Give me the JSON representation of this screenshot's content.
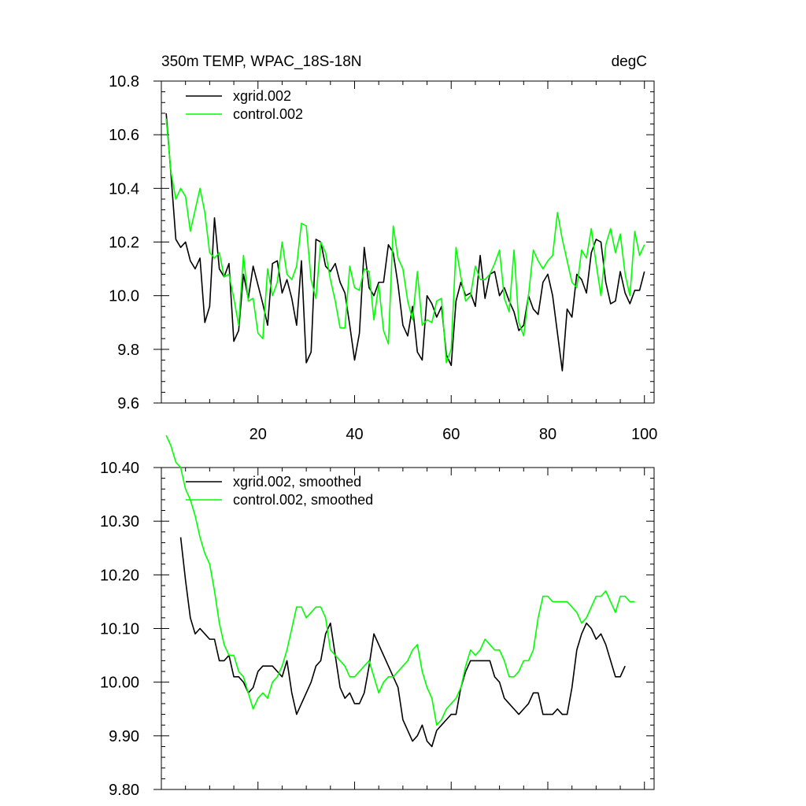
{
  "chart_data": [
    {
      "type": "line",
      "title": "350m TEMP, WPAC_18S-18N",
      "units": "degC",
      "xlim": [
        0,
        102
      ],
      "ylim": [
        9.6,
        10.8
      ],
      "xticks": [
        20,
        40,
        60,
        80,
        100
      ],
      "yticks": [
        9.6,
        9.8,
        10.0,
        10.2,
        10.4,
        10.6,
        10.8
      ],
      "ytick_labels": [
        "9.6",
        "9.8",
        "10.0",
        "10.2",
        "10.4",
        "10.6",
        "10.8"
      ],
      "x_start": 1,
      "x_step": 1,
      "legend_position": "top-left",
      "series": [
        {
          "name": "xgrid.002",
          "color": "#000000",
          "values": [
            10.68,
            10.45,
            10.21,
            10.18,
            10.2,
            10.13,
            10.1,
            10.14,
            9.9,
            9.96,
            10.29,
            10.1,
            10.07,
            10.12,
            9.83,
            9.87,
            10.08,
            9.99,
            10.11,
            10.04,
            9.97,
            9.89,
            10.12,
            10.13,
            10.01,
            10.06,
            9.99,
            9.89,
            10.13,
            9.75,
            9.79,
            10.21,
            10.2,
            10.11,
            10.09,
            10.12,
            10.05,
            10.01,
            9.89,
            9.76,
            9.86,
            10.18,
            10.03,
            10.0,
            10.05,
            10.05,
            10.19,
            10.16,
            10.04,
            9.89,
            9.85,
            9.96,
            9.79,
            9.76,
            10.0,
            9.97,
            9.92,
            9.96,
            9.78,
            9.74,
            9.98,
            10.05,
            10.0,
            10.01,
            9.96,
            10.15,
            9.99,
            10.08,
            10.09,
            10.0,
            10.03,
            9.98,
            9.94,
            9.87,
            9.89,
            10.0,
            9.95,
            9.93,
            10.05,
            10.08,
            10.0,
            9.86,
            9.72,
            9.95,
            9.92,
            10.08,
            10.06,
            10.01,
            10.16,
            10.21,
            10.2,
            10.05,
            9.97,
            9.98,
            10.09,
            10.01,
            9.97,
            10.02,
            10.02,
            10.09
          ]
        },
        {
          "name": "control.002",
          "color": "#00ff00",
          "values": [
            10.66,
            10.46,
            10.36,
            10.4,
            10.37,
            10.24,
            10.32,
            10.4,
            10.31,
            10.16,
            10.14,
            10.16,
            10.07,
            10.08,
            9.99,
            9.89,
            10.15,
            9.98,
            9.99,
            9.86,
            9.84,
            10.1,
            10.0,
            10.05,
            10.2,
            10.08,
            10.06,
            10.11,
            10.27,
            10.26,
            10.06,
            9.99,
            10.2,
            10.16,
            10.06,
            9.98,
            9.88,
            9.88,
            10.11,
            10.03,
            10.02,
            10.1,
            10.09,
            9.91,
            10.04,
            9.87,
            9.82,
            10.26,
            10.14,
            10.1,
            9.98,
            9.91,
            10.09,
            9.89,
            9.91,
            9.9,
            9.98,
            9.99,
            9.75,
            9.8,
            10.18,
            10.07,
            9.98,
            10.0,
            10.11,
            10.06,
            10.06,
            10.08,
            10.12,
            10.17,
            9.99,
            9.94,
            10.17,
            9.9,
            9.85,
            10.0,
            10.17,
            10.13,
            10.1,
            10.13,
            10.15,
            10.31,
            10.21,
            10.13,
            10.05,
            10.03,
            10.17,
            10.14,
            10.25,
            10.12,
            10.0,
            10.19,
            10.25,
            10.16,
            10.23,
            10.08,
            10.0,
            10.24,
            10.15,
            10.19
          ]
        }
      ]
    },
    {
      "type": "line",
      "xlim": [
        0,
        102
      ],
      "ylim": [
        9.8,
        10.4
      ],
      "xticks": [
        20,
        40,
        60,
        80,
        100
      ],
      "yticks": [
        9.8,
        9.9,
        10.0,
        10.1,
        10.2,
        10.3,
        10.4
      ],
      "ytick_labels": [
        "9.80",
        "9.90",
        "10.00",
        "10.10",
        "10.20",
        "10.30",
        "10.40"
      ],
      "legend_position": "top-left",
      "series": [
        {
          "name": "xgrid.002, smoothed",
          "color": "#000000",
          "x_start": 4,
          "x_step": 1,
          "values": [
            10.27,
            10.19,
            10.12,
            10.09,
            10.1,
            10.09,
            10.08,
            10.08,
            10.04,
            10.04,
            10.05,
            10.01,
            10.01,
            10.0,
            9.98,
            9.99,
            10.02,
            10.03,
            10.03,
            10.03,
            10.02,
            10.01,
            10.04,
            9.98,
            9.94,
            9.96,
            9.98,
            10.0,
            10.03,
            10.04,
            10.09,
            10.11,
            10.05,
            9.99,
            9.97,
            9.98,
            9.96,
            9.96,
            9.98,
            10.03,
            10.09,
            10.07,
            10.05,
            10.03,
            10.01,
            9.99,
            9.93,
            9.91,
            9.89,
            9.9,
            9.92,
            9.89,
            9.88,
            9.91,
            9.92,
            9.93,
            9.94,
            9.94,
            9.99,
            10.02,
            10.04,
            10.04,
            10.04,
            10.04,
            10.04,
            10.01,
            10.0,
            9.97,
            9.96,
            9.95,
            9.94,
            9.95,
            9.96,
            9.98,
            9.98,
            9.94,
            9.94,
            9.94,
            9.95,
            9.94,
            9.94,
            9.99,
            10.06,
            10.09,
            10.11,
            10.1,
            10.08,
            10.09,
            10.07,
            10.04,
            10.01,
            10.01,
            10.03
          ]
        },
        {
          "name": "control.002, smoothed",
          "color": "#00ff00",
          "x_start": 1,
          "x_step": 1,
          "values": [
            10.46,
            10.44,
            10.41,
            10.4,
            10.36,
            10.34,
            10.31,
            10.27,
            10.24,
            10.22,
            10.17,
            10.11,
            10.07,
            10.05,
            10.05,
            10.02,
            10.01,
            9.98,
            9.95,
            9.97,
            9.98,
            9.97,
            10.0,
            10.01,
            10.03,
            10.06,
            10.1,
            10.14,
            10.14,
            10.12,
            10.13,
            10.14,
            10.14,
            10.12,
            10.06,
            10.05,
            10.04,
            10.03,
            10.01,
            10.01,
            10.02,
            10.03,
            10.04,
            10.01,
            9.98,
            10.0,
            10.01,
            10.01,
            10.02,
            10.03,
            10.04,
            10.06,
            10.07,
            10.02,
            9.99,
            9.97,
            9.92,
            9.93,
            9.95,
            9.96,
            9.97,
            9.99,
            10.03,
            10.06,
            10.05,
            10.06,
            10.08,
            10.07,
            10.06,
            10.06,
            10.04,
            10.01,
            10.01,
            10.02,
            10.04,
            10.04,
            10.06,
            10.12,
            10.16,
            10.16,
            10.15,
            10.15,
            10.15,
            10.15,
            10.14,
            10.13,
            10.11,
            10.12,
            10.14,
            10.16,
            10.16,
            10.17,
            10.15,
            10.13,
            10.16,
            10.16,
            10.15,
            10.15
          ]
        }
      ]
    }
  ]
}
